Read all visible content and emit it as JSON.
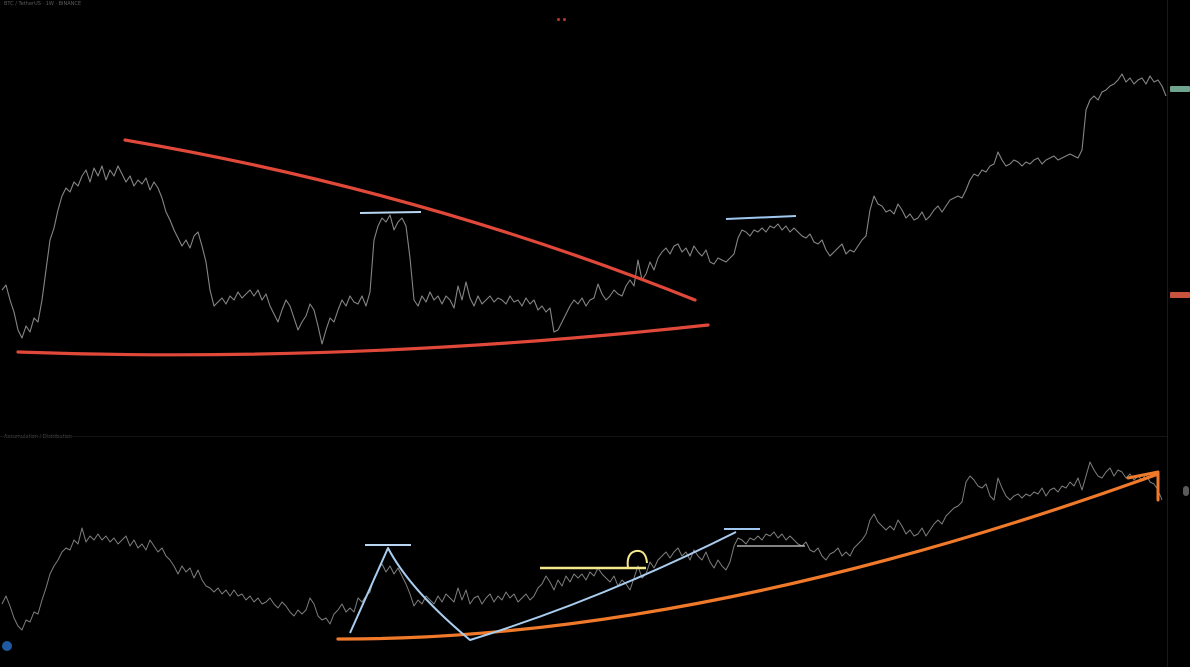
{
  "chart": {
    "symbol_legend": "BTC / TetherUS · 1W · BINANCE",
    "indicator_legend": "Accumulation / Distribution",
    "colors": {
      "background": "#000000",
      "price_line": "#8a8a8a",
      "red_trendline": "#e0483a",
      "orange_trendline": "#f07a2a",
      "blue_annotation": "#9fc8f0",
      "yellow_annotation": "#f4e98a",
      "white_annotation": "#e6e6e6",
      "price_tag_green": "#6fa58f",
      "price_tag_red": "#c9523f",
      "badge_blue": "#1f5aa0"
    },
    "price_tags": [
      {
        "kind": "current",
        "color": "#6fa58f"
      },
      {
        "kind": "marker",
        "color": "#c9523f"
      }
    ],
    "icons": [
      "arrow-up-right-icon",
      "scroll-handle-icon",
      "logo-badge-icon"
    ]
  }
}
